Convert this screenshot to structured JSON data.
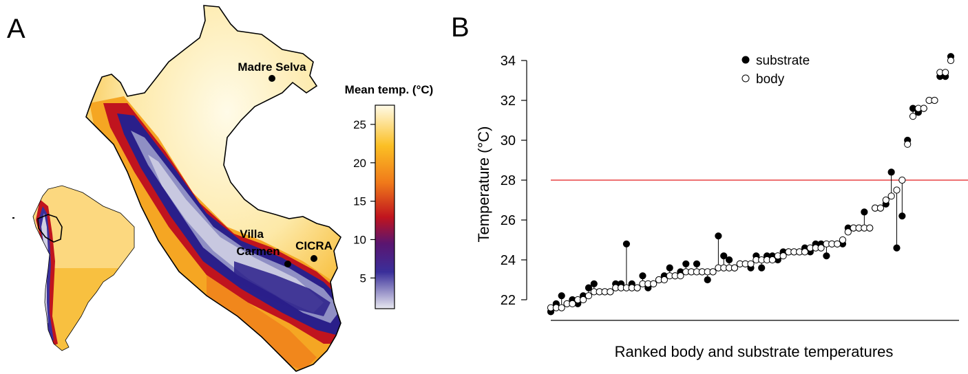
{
  "panels": {
    "a": {
      "letter": "A"
    },
    "b": {
      "letter": "B"
    }
  },
  "map": {
    "legend_title": "Mean temp. (°C)",
    "legend_ticks": [
      5,
      10,
      15,
      20,
      25
    ],
    "legend_range": [
      1,
      27.5
    ],
    "sites": [
      {
        "name": "Madre Selva",
        "lines": [
          "Madre Selva"
        ]
      },
      {
        "name": "Villa Carmen",
        "lines": [
          "Villa",
          "Carmen"
        ]
      },
      {
        "name": "CICRA",
        "lines": [
          "CICRA"
        ]
      }
    ],
    "colors": {
      "cold": "#e8e8f0",
      "cool": "#2a1f8a",
      "mid": "#c0141e",
      "warm": "#f5a623",
      "hot": "#fff8dc"
    }
  },
  "chart_data": {
    "type": "scatter",
    "title": "",
    "xlabel": "Ranked body and substrate temperatures",
    "ylabel": "Temperature (°C)",
    "ylim": [
      21.0,
      34.5
    ],
    "yticks": [
      22,
      24,
      26,
      28,
      30,
      32,
      34
    ],
    "xticks": [],
    "grid": false,
    "legend": {
      "placement": "top-center",
      "entries": [
        "substrate",
        "body"
      ]
    },
    "reference_line": {
      "y": 28,
      "color": "#e31a1c"
    },
    "series": [
      {
        "name": "substrate",
        "marker": "filled",
        "values": [
          21.4,
          21.8,
          22.2,
          21.8,
          22.0,
          21.8,
          22.2,
          22.6,
          22.8,
          22.4,
          22.4,
          22.4,
          22.8,
          22.8,
          24.8,
          22.8,
          22.6,
          23.2,
          22.6,
          22.8,
          23.0,
          23.2,
          23.6,
          23.2,
          23.4,
          23.8,
          23.4,
          23.8,
          23.4,
          23.0,
          23.4,
          25.2,
          24.2,
          24.0,
          23.6,
          23.8,
          23.8,
          23.6,
          24.2,
          23.6,
          24.2,
          24.2,
          24.0,
          24.4,
          24.4,
          24.4,
          24.4,
          24.6,
          24.4,
          24.8,
          24.8,
          24.2,
          24.8,
          24.8,
          24.8,
          25.6,
          25.6,
          25.6,
          26.4,
          25.6,
          26.6,
          26.6,
          26.8,
          28.4,
          24.6,
          26.2,
          30.0,
          31.6,
          31.4,
          31.6,
          32.0,
          32.0,
          33.2,
          33.2,
          34.2
        ]
      },
      {
        "name": "body",
        "marker": "open",
        "values": [
          21.6,
          21.6,
          21.6,
          21.8,
          21.8,
          22.0,
          22.0,
          22.2,
          22.4,
          22.4,
          22.4,
          22.4,
          22.6,
          22.6,
          22.6,
          22.6,
          22.6,
          22.8,
          22.8,
          22.8,
          23.0,
          23.0,
          23.2,
          23.2,
          23.2,
          23.4,
          23.4,
          23.4,
          23.4,
          23.4,
          23.4,
          23.6,
          23.6,
          23.6,
          23.6,
          23.8,
          23.8,
          23.8,
          24.0,
          24.0,
          24.0,
          24.0,
          24.2,
          24.2,
          24.4,
          24.4,
          24.4,
          24.4,
          24.6,
          24.6,
          24.6,
          24.8,
          24.8,
          24.8,
          25.0,
          25.4,
          25.6,
          25.6,
          25.6,
          25.6,
          26.6,
          26.6,
          27.0,
          27.2,
          27.5,
          28.0,
          29.8,
          31.2,
          31.6,
          31.6,
          32.0,
          32.0,
          33.4,
          33.4,
          34.0
        ]
      }
    ]
  }
}
